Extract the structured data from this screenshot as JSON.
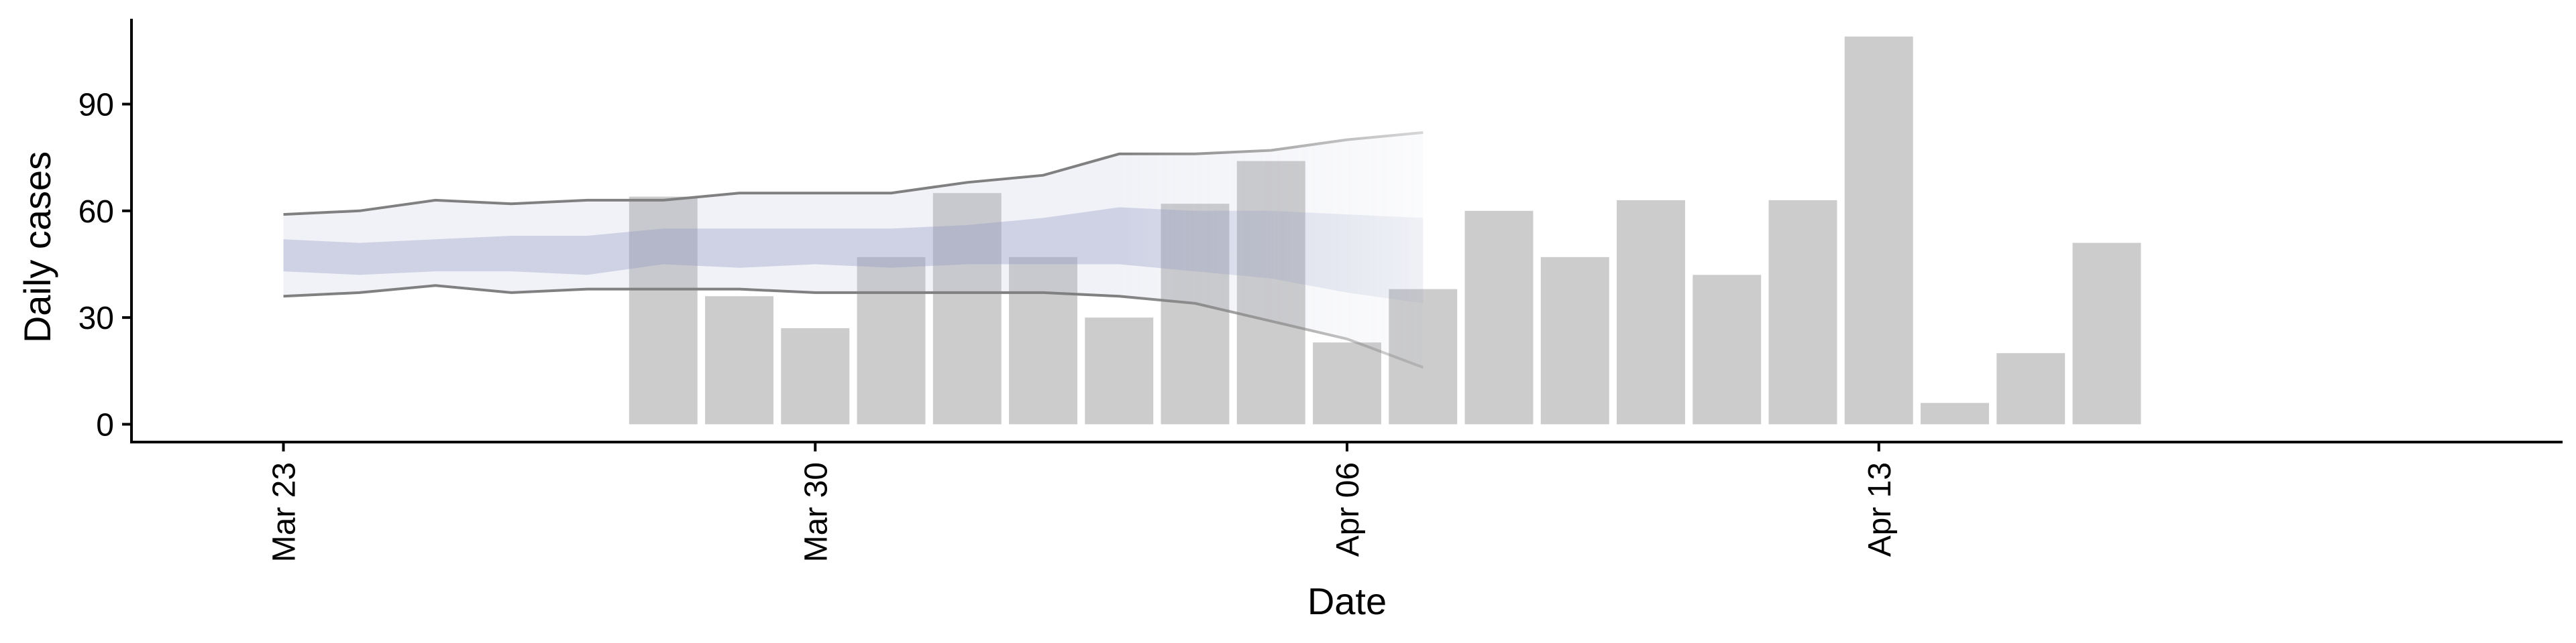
{
  "chart_data": {
    "type": "bar",
    "xlabel": "Date",
    "ylabel": "Daily cases",
    "x_tick_labels": [
      "Mar 23",
      "Mar 30",
      "Apr 06",
      "Apr 13"
    ],
    "x_ticks": [
      "2020-03-23",
      "2020-03-30",
      "2020-04-06",
      "2020-04-13"
    ],
    "y_ticks": [
      0,
      30,
      60,
      90
    ],
    "ylim": [
      -5,
      114
    ],
    "xlim": [
      "2020-03-21",
      "2020-04-22"
    ],
    "bars": {
      "dates": [
        "2020-03-28",
        "2020-03-29",
        "2020-03-30",
        "2020-03-31",
        "2020-04-01",
        "2020-04-02",
        "2020-04-03",
        "2020-04-04",
        "2020-04-05",
        "2020-04-06",
        "2020-04-07",
        "2020-04-08",
        "2020-04-09",
        "2020-04-10",
        "2020-04-11",
        "2020-04-12",
        "2020-04-13",
        "2020-04-14",
        "2020-04-15",
        "2020-04-16"
      ],
      "values": [
        64,
        36,
        27,
        47,
        65,
        47,
        30,
        62,
        74,
        23,
        38,
        60,
        47,
        63,
        42,
        63,
        109,
        6,
        20,
        51
      ],
      "color": "#cccccc"
    },
    "forecast": {
      "dates": [
        "2020-03-23",
        "2020-03-24",
        "2020-03-25",
        "2020-03-26",
        "2020-03-27",
        "2020-03-28",
        "2020-03-29",
        "2020-03-30",
        "2020-03-31",
        "2020-04-01",
        "2020-04-02",
        "2020-04-03",
        "2020-04-04",
        "2020-04-05",
        "2020-04-06",
        "2020-04-07"
      ],
      "outer_upper": [
        59,
        60,
        63,
        62,
        63,
        63,
        65,
        65,
        65,
        68,
        70,
        76,
        76,
        77,
        80,
        82
      ],
      "outer_lower": [
        36,
        37,
        39,
        37,
        38,
        38,
        38,
        37,
        37,
        37,
        37,
        36,
        34,
        29,
        24,
        16
      ],
      "inner_upper": [
        52,
        51,
        52,
        53,
        53,
        55,
        55,
        55,
        55,
        56,
        58,
        61,
        60,
        60,
        59,
        58
      ],
      "inner_lower": [
        43,
        42,
        43,
        43,
        42,
        45,
        44,
        45,
        44,
        45,
        45,
        45,
        43,
        41,
        37,
        34
      ],
      "fade_from_date": "2020-04-03",
      "band_outer_color": "#b8bfd6",
      "band_inner_color": "#8c98bf",
      "edge_line_color": "#808080"
    }
  }
}
